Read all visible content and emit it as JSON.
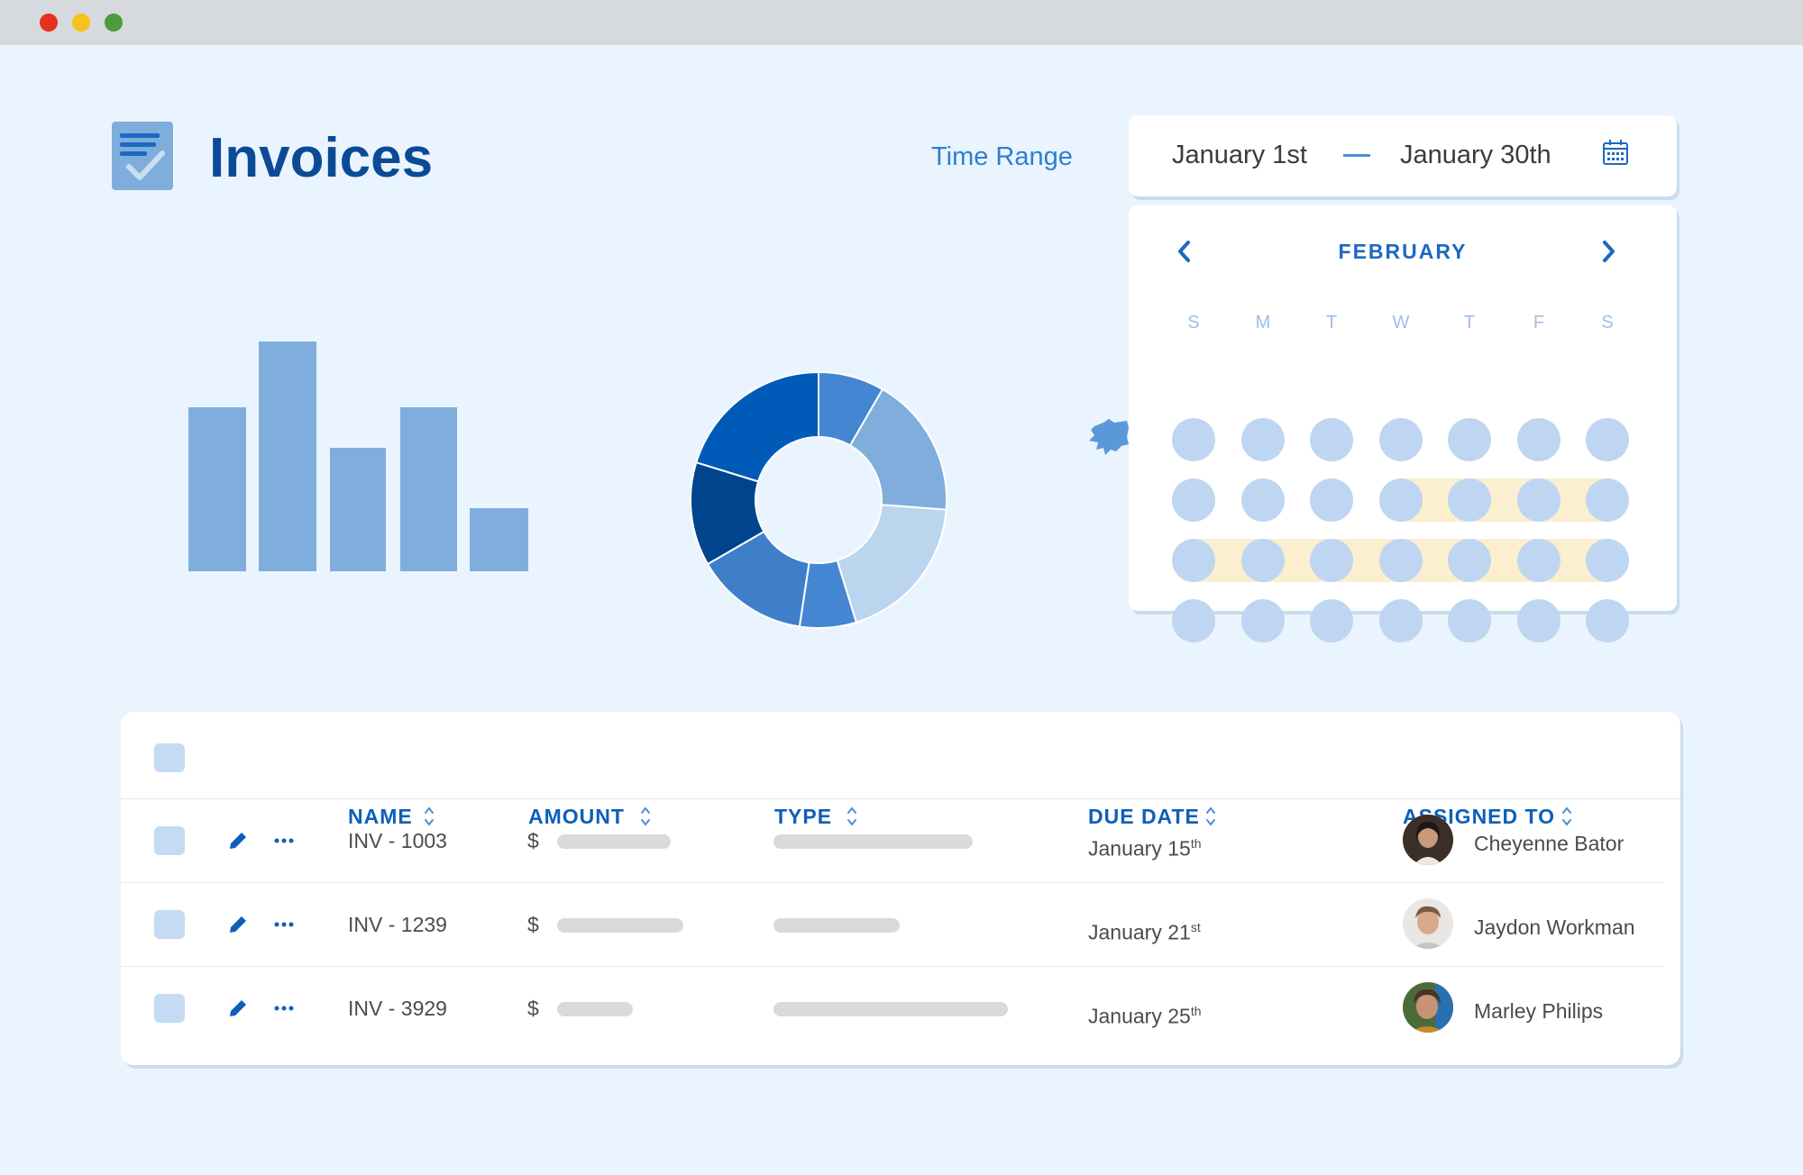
{
  "window": {
    "controls": [
      "close",
      "minimize",
      "maximize"
    ],
    "colors": {
      "close": "#e8301f",
      "minimize": "#f7c21b",
      "maximize": "#4d9b3c"
    }
  },
  "header": {
    "title": "Invoices",
    "icon": "document-check-icon",
    "time_range_label": "Time Range"
  },
  "date_range": {
    "start": "January 1st",
    "end": "January 30th",
    "icon": "calendar-icon"
  },
  "calendar": {
    "month": "FEBRUARY",
    "weekdays": [
      "S",
      "M",
      "T",
      "W",
      "T",
      "F",
      "S"
    ],
    "weeks": 4,
    "highlighted_ranges": [
      {
        "week": 3,
        "from_day": 4,
        "to_day": 7
      },
      {
        "week": 4,
        "from_day": 1,
        "to_day": 7
      }
    ],
    "prev_icon": "chevron-left-icon",
    "next_icon": "chevron-right-icon"
  },
  "bar_chart": {
    "type": "bar",
    "values": [
      57,
      80,
      43,
      57,
      22
    ],
    "color": "#7faedd"
  },
  "donut_chart": {
    "type": "pie",
    "values": [
      7,
      15,
      16,
      6,
      12,
      11,
      17
    ],
    "colors": [
      "#4586d3",
      "#7faedd",
      "#bcd5ee",
      "#4586d3",
      "#3f7fc9",
      "#00448e",
      "#005bb8"
    ]
  },
  "table": {
    "columns": [
      "NAME",
      "AMOUNT",
      "TYPE",
      "DUE DATE",
      "ASSIGNED TO"
    ],
    "rows": [
      {
        "name": "INV - 1003",
        "currency": "$",
        "amount_bar": 0.45,
        "type_bar": 0.85,
        "due": "January 15",
        "due_suffix": "th",
        "assignee": "Cheyenne Bator"
      },
      {
        "name": "INV - 1239",
        "currency": "$",
        "amount_bar": 0.5,
        "type_bar": 0.54,
        "due": "January 21",
        "due_suffix": "st",
        "assignee": "Jaydon Workman"
      },
      {
        "name": "INV - 3929",
        "currency": "$",
        "amount_bar": 0.3,
        "type_bar": 1.0,
        "due": "January 25",
        "due_suffix": "th",
        "assignee": "Marley Philips"
      }
    ]
  }
}
